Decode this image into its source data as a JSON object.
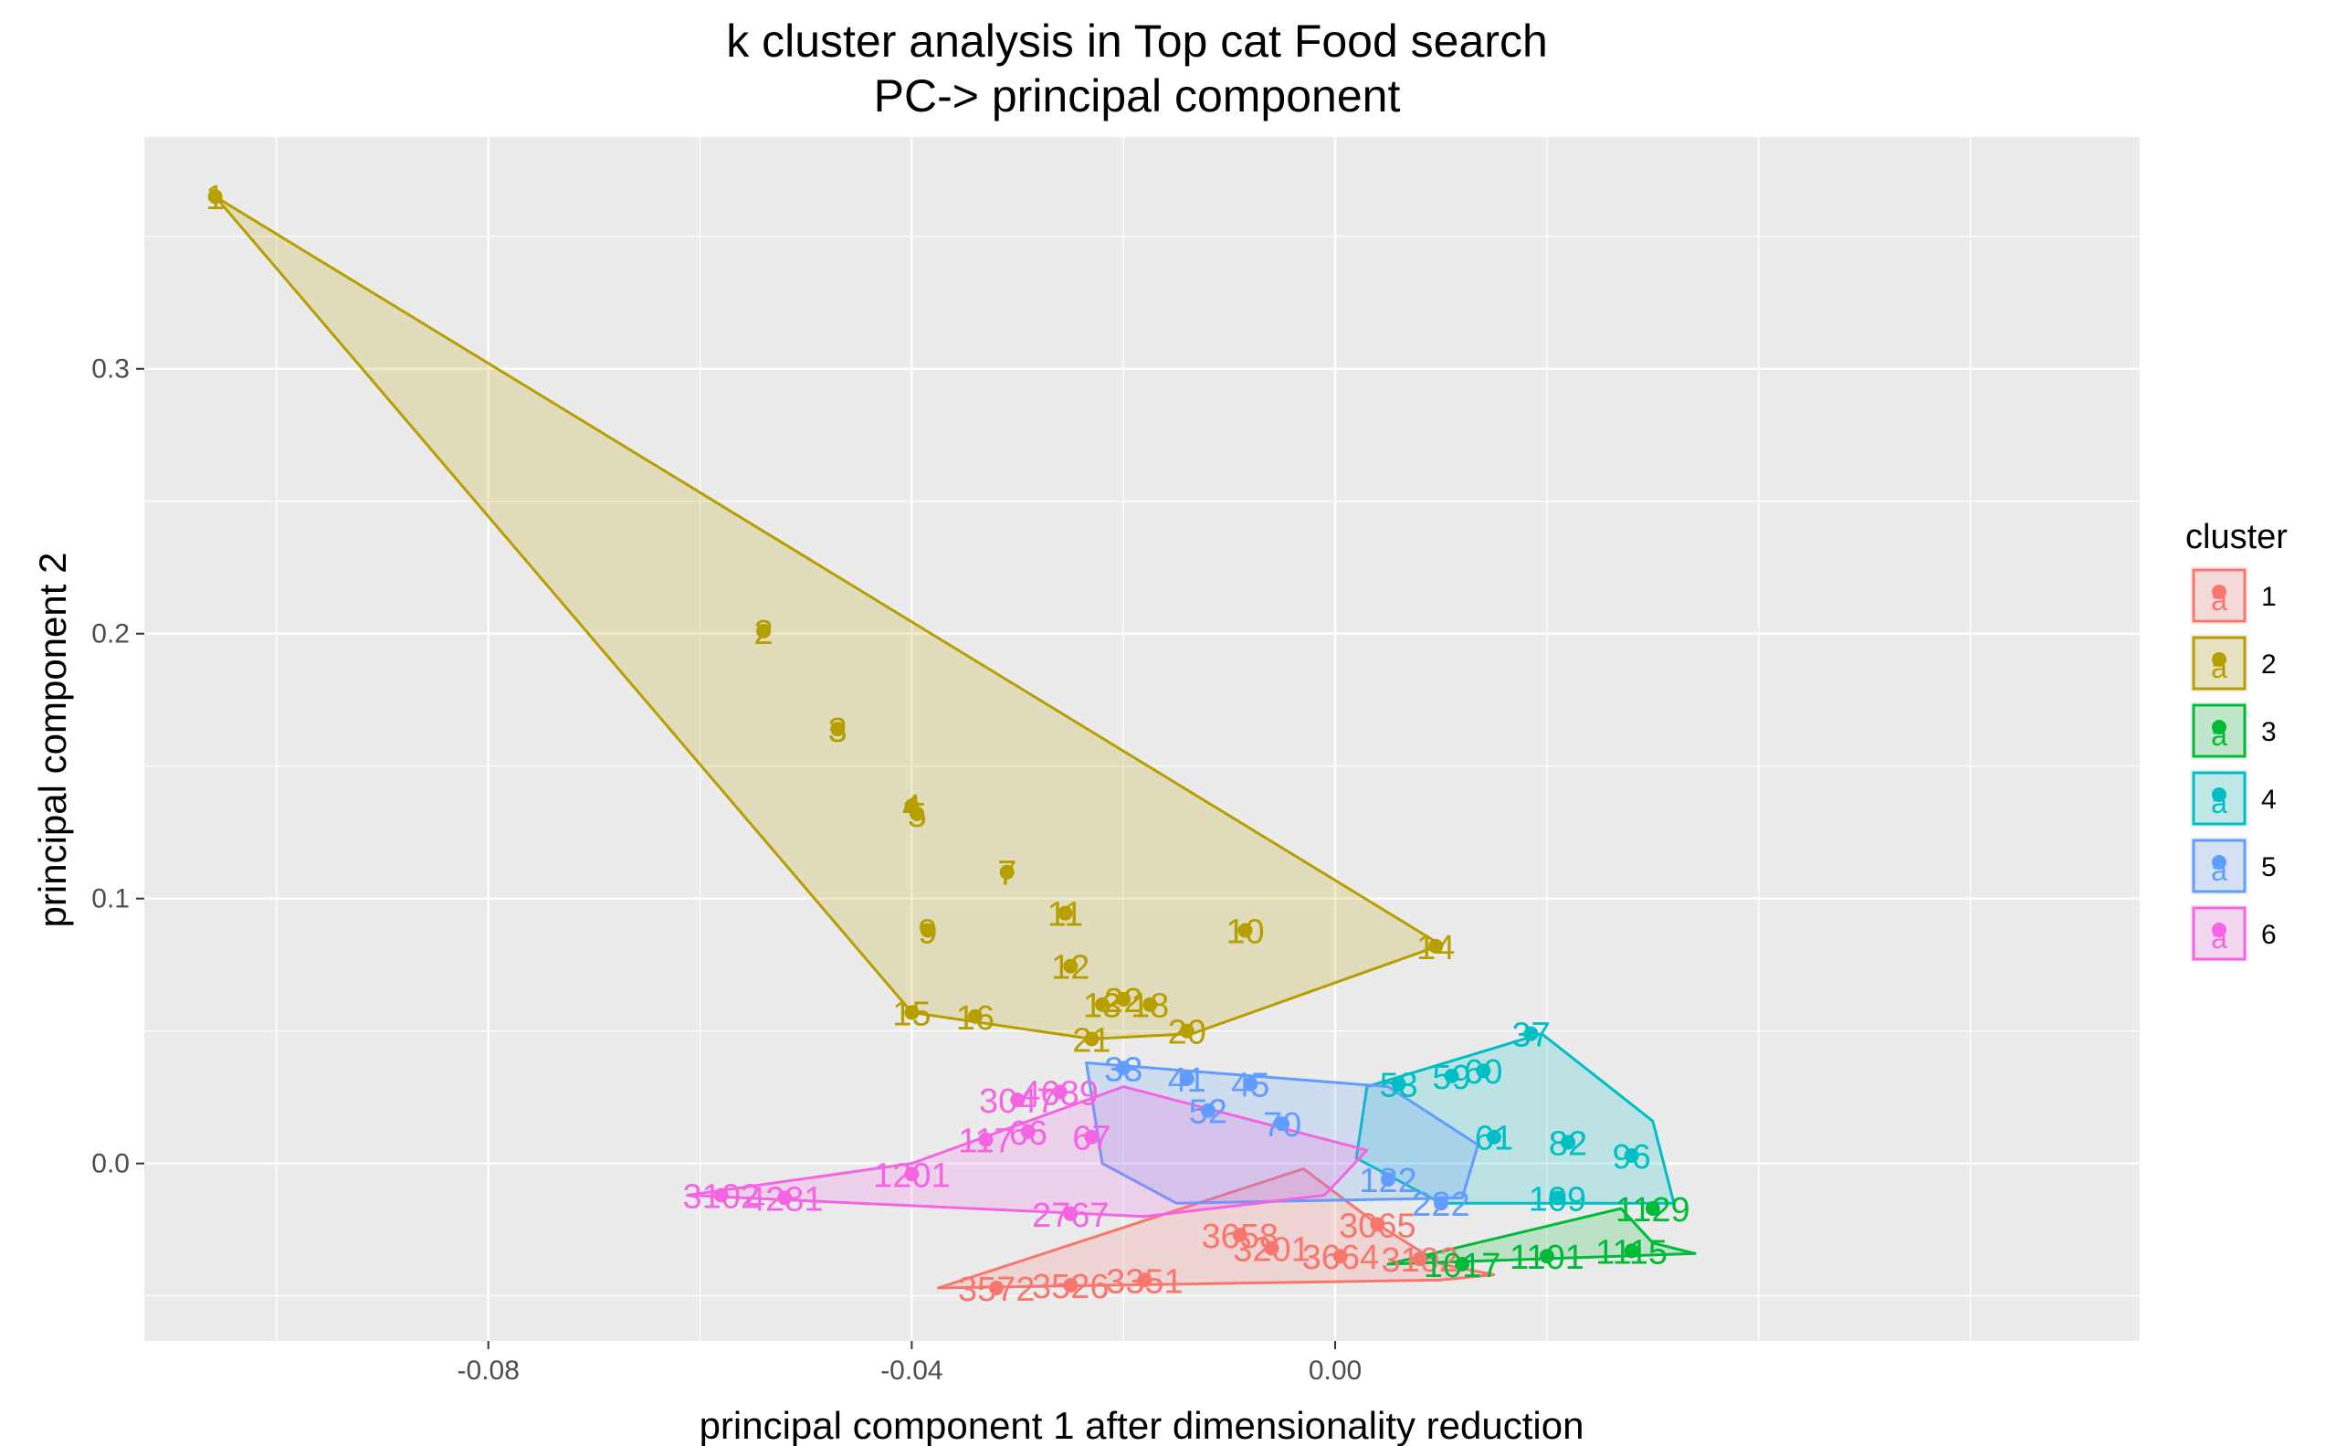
{
  "chart_data": {
    "type": "scatter",
    "title": "k cluster analysis in Top cat Food search",
    "subtitle": "PC-> principal component",
    "xlabel": "principal component 1 after dimensionality reduction",
    "ylabel": "principal component 2",
    "xlim": [
      -0.1125,
      0.076
    ],
    "ylim": [
      -0.067,
      0.3875
    ],
    "x_ticks": [
      -0.08,
      -0.04,
      0.0
    ],
    "x_tick_labels": [
      "-0.08",
      "-0.04",
      "0.00"
    ],
    "y_ticks": [
      0.0,
      0.1,
      0.2,
      0.3
    ],
    "y_tick_labels": [
      "0.0",
      "0.1",
      "0.2",
      "0.3"
    ],
    "grid": true,
    "legend": {
      "title": "cluster",
      "position": "right",
      "glyph": "a"
    },
    "series": [
      {
        "name": "1",
        "color": "#F8766D",
        "hull": [
          [
            -0.0375,
            -0.047
          ],
          [
            -0.003,
            -0.002
          ],
          [
            0.004,
            -0.023
          ],
          [
            0.01,
            -0.038
          ],
          [
            0.015,
            -0.042
          ],
          [
            0.01,
            -0.044
          ],
          [
            -0.0375,
            -0.047
          ]
        ],
        "points": [
          {
            "x": -0.032,
            "y": -0.047,
            "label": "3572"
          },
          {
            "x": -0.025,
            "y": -0.046,
            "label": "3526"
          },
          {
            "x": -0.018,
            "y": -0.044,
            "label": "3351"
          },
          {
            "x": -0.009,
            "y": -0.027,
            "label": "3658"
          },
          {
            "x": -0.006,
            "y": -0.032,
            "label": "3201"
          },
          {
            "x": 0.0005,
            "y": -0.035,
            "label": "3664"
          },
          {
            "x": 0.004,
            "y": -0.023,
            "label": "3065"
          },
          {
            "x": 0.008,
            "y": -0.036,
            "label": "3102"
          }
        ]
      },
      {
        "name": "2",
        "color": "#B79F00",
        "hull": [
          [
            -0.1058,
            0.365
          ],
          [
            0.01,
            0.0825
          ],
          [
            -0.0135,
            0.049
          ],
          [
            -0.023,
            0.047
          ],
          [
            -0.04,
            0.057
          ],
          [
            -0.1058,
            0.365
          ]
        ],
        "points": [
          {
            "x": -0.1058,
            "y": 0.365,
            "label": "1"
          },
          {
            "x": -0.054,
            "y": 0.201,
            "label": "2"
          },
          {
            "x": -0.047,
            "y": 0.164,
            "label": "3"
          },
          {
            "x": -0.04,
            "y": 0.135,
            "label": "4"
          },
          {
            "x": -0.0395,
            "y": 0.132,
            "label": "5"
          },
          {
            "x": -0.031,
            "y": 0.11,
            "label": "7"
          },
          {
            "x": -0.0385,
            "y": 0.088,
            "label": "9"
          },
          {
            "x": -0.0085,
            "y": 0.088,
            "label": "10"
          },
          {
            "x": -0.0255,
            "y": 0.0945,
            "label": "11"
          },
          {
            "x": -0.025,
            "y": 0.0745,
            "label": "12"
          },
          {
            "x": -0.022,
            "y": 0.06,
            "label": "13"
          },
          {
            "x": 0.0095,
            "y": 0.082,
            "label": "14"
          },
          {
            "x": -0.04,
            "y": 0.057,
            "label": "15"
          },
          {
            "x": -0.034,
            "y": 0.0555,
            "label": "16"
          },
          {
            "x": -0.0175,
            "y": 0.06,
            "label": "18"
          },
          {
            "x": -0.014,
            "y": 0.05,
            "label": "20"
          },
          {
            "x": -0.023,
            "y": 0.047,
            "label": "21"
          },
          {
            "x": -0.02,
            "y": 0.062,
            "label": "22"
          }
        ]
      },
      {
        "name": "3",
        "color": "#00BA38",
        "hull": [
          [
            0.005,
            -0.038
          ],
          [
            0.027,
            -0.017
          ],
          [
            0.03,
            -0.03
          ],
          [
            0.034,
            -0.034
          ],
          [
            0.005,
            -0.038
          ]
        ],
        "points": [
          {
            "x": 0.012,
            "y": -0.038,
            "label": "1017"
          },
          {
            "x": 0.02,
            "y": -0.035,
            "label": "1101"
          },
          {
            "x": 0.028,
            "y": -0.033,
            "label": "1115"
          },
          {
            "x": 0.03,
            "y": -0.017,
            "label": "1129"
          }
        ]
      },
      {
        "name": "4",
        "color": "#00BFC4",
        "hull": [
          [
            0.003,
            0.029
          ],
          [
            0.0195,
            0.049
          ],
          [
            0.03,
            0.016
          ],
          [
            0.032,
            -0.015
          ],
          [
            0.01,
            -0.015
          ],
          [
            0.002,
            0.002
          ],
          [
            0.003,
            0.029
          ]
        ],
        "points": [
          {
            "x": 0.0185,
            "y": 0.049,
            "label": "37"
          },
          {
            "x": 0.006,
            "y": 0.03,
            "label": "53"
          },
          {
            "x": 0.011,
            "y": 0.033,
            "label": "59"
          },
          {
            "x": 0.014,
            "y": 0.035,
            "label": "60"
          },
          {
            "x": 0.015,
            "y": 0.01,
            "label": "61"
          },
          {
            "x": 0.022,
            "y": 0.008,
            "label": "82"
          },
          {
            "x": 0.028,
            "y": 0.003,
            "label": "96"
          },
          {
            "x": 0.021,
            "y": -0.013,
            "label": "109"
          }
        ]
      },
      {
        "name": "5",
        "color": "#619CFF",
        "hull": [
          [
            -0.0235,
            0.038
          ],
          [
            0.005,
            0.029
          ],
          [
            0.0135,
            0.007
          ],
          [
            0.012,
            -0.013
          ],
          [
            -0.015,
            -0.015
          ],
          [
            -0.022,
            0.0
          ],
          [
            -0.0235,
            0.038
          ]
        ],
        "points": [
          {
            "x": -0.02,
            "y": 0.036,
            "label": "33"
          },
          {
            "x": -0.014,
            "y": 0.032,
            "label": "41"
          },
          {
            "x": -0.008,
            "y": 0.03,
            "label": "45"
          },
          {
            "x": -0.012,
            "y": 0.02,
            "label": "52"
          },
          {
            "x": -0.005,
            "y": 0.015,
            "label": "70"
          },
          {
            "x": 0.005,
            "y": -0.006,
            "label": "122"
          },
          {
            "x": 0.01,
            "y": -0.015,
            "label": "222"
          }
        ]
      },
      {
        "name": "6",
        "color": "#F564E3",
        "hull": [
          [
            -0.0612,
            -0.012
          ],
          [
            -0.04,
            0.0
          ],
          [
            -0.02,
            0.029
          ],
          [
            0.003,
            0.005
          ],
          [
            -0.001,
            -0.012
          ],
          [
            -0.018,
            -0.02
          ],
          [
            -0.0612,
            -0.012
          ]
        ],
        "points": [
          {
            "x": -0.058,
            "y": -0.012,
            "label": "3102"
          },
          {
            "x": -0.052,
            "y": -0.013,
            "label": "4281"
          },
          {
            "x": -0.04,
            "y": -0.004,
            "label": "1201"
          },
          {
            "x": -0.03,
            "y": 0.024,
            "label": "3047"
          },
          {
            "x": -0.026,
            "y": 0.027,
            "label": "4689"
          },
          {
            "x": -0.033,
            "y": 0.009,
            "label": "117"
          },
          {
            "x": -0.029,
            "y": 0.012,
            "label": "66"
          },
          {
            "x": -0.023,
            "y": 0.01,
            "label": "67"
          },
          {
            "x": -0.025,
            "y": -0.019,
            "label": "2767"
          }
        ]
      }
    ]
  }
}
